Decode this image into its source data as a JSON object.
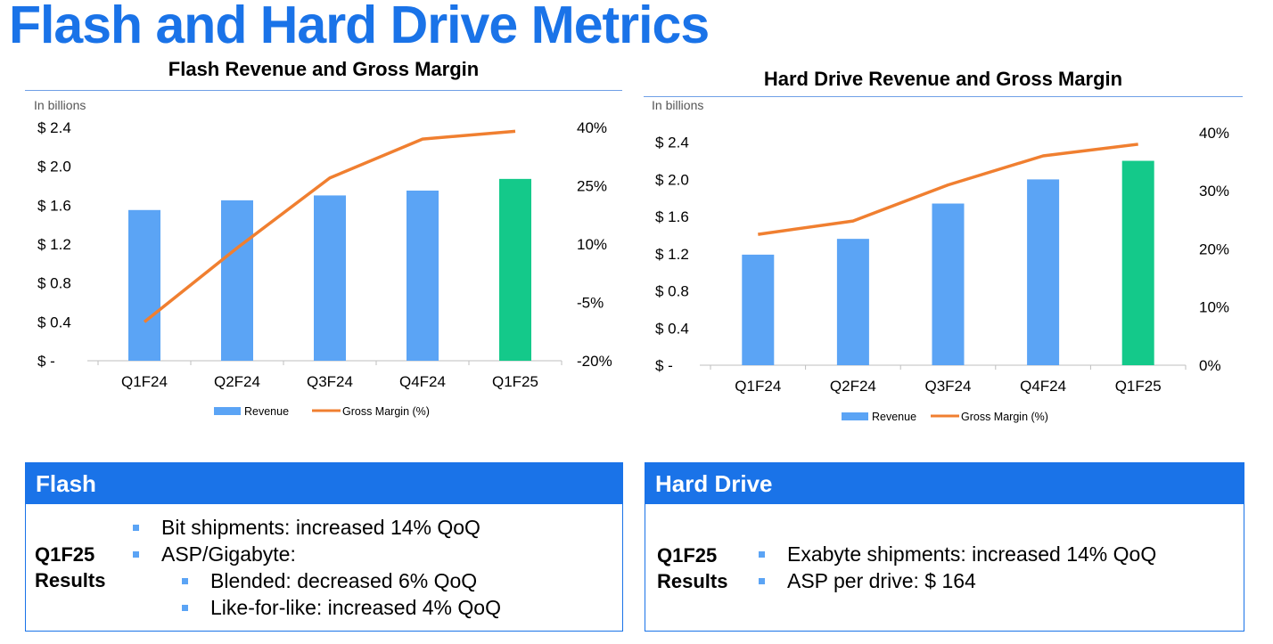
{
  "page_title": "Flash and Hard Drive Metrics",
  "colors": {
    "title_blue": "#1a73e8",
    "bar_blue": "#5ba4f5",
    "bar_green": "#14c98a",
    "line_orange": "#f07f30"
  },
  "chart_data": [
    {
      "type": "bar",
      "title": "Flash Revenue and Gross Margin",
      "unit_label": "In billions",
      "categories": [
        "Q1F24",
        "Q2F24",
        "Q3F24",
        "Q4F24",
        "Q1F25"
      ],
      "series": [
        {
          "name": "Revenue",
          "kind": "bar",
          "axis": "left",
          "values": [
            1.55,
            1.65,
            1.7,
            1.75,
            1.87
          ],
          "highlight_last": true
        },
        {
          "name": "Gross Margin (%)",
          "kind": "line",
          "axis": "right",
          "values": [
            -10,
            9,
            27,
            37,
            39
          ]
        }
      ],
      "left_axis": {
        "ticks": [
          "$ -",
          "$ 0.4",
          "$ 0.8",
          "$ 1.2",
          "$ 1.6",
          "$ 2.0",
          "$ 2.4"
        ],
        "min": 0,
        "max": 2.4
      },
      "right_axis": {
        "ticks": [
          "-20%",
          "-5%",
          "10%",
          "25%",
          "40%"
        ],
        "min": -20,
        "max": 40
      },
      "legend": {
        "position": "bottom",
        "items": [
          "Revenue",
          "Gross Margin (%)"
        ]
      }
    },
    {
      "type": "bar",
      "title": "Hard Drive Revenue and Gross Margin",
      "unit_label": "In billions",
      "categories": [
        "Q1F24",
        "Q2F24",
        "Q3F24",
        "Q4F24",
        "Q1F25"
      ],
      "series": [
        {
          "name": "Revenue",
          "kind": "bar",
          "axis": "left",
          "values": [
            1.19,
            1.36,
            1.74,
            2.0,
            2.2
          ],
          "highlight_last": true
        },
        {
          "name": "Gross Margin (%)",
          "kind": "line",
          "axis": "right",
          "values": [
            22.5,
            24.8,
            31,
            36,
            38
          ]
        }
      ],
      "left_axis": {
        "ticks": [
          "$ -",
          "$ 0.4",
          "$ 0.8",
          "$ 1.2",
          "$ 1.6",
          "$ 2.0",
          "$ 2.4"
        ],
        "min": 0,
        "max": 2.56
      },
      "right_axis": {
        "ticks": [
          "0%",
          "10%",
          "20%",
          "30%",
          "40%"
        ],
        "min": 0,
        "max": 40.9
      },
      "legend": {
        "position": "bottom",
        "items": [
          "Revenue",
          "Gross Margin (%)"
        ]
      }
    }
  ],
  "flash_box": {
    "header": "Flash",
    "results_label_line1": "Q1F25",
    "results_label_line2": "Results",
    "bullets": [
      {
        "text": "Bit shipments: increased 14% QoQ",
        "level": 0
      },
      {
        "text": "ASP/Gigabyte:",
        "level": 0
      },
      {
        "text": "Blended: decreased 6% QoQ",
        "level": 1
      },
      {
        "text": "Like-for-like: increased 4% QoQ",
        "level": 1
      }
    ]
  },
  "hdd_box": {
    "header": "Hard Drive",
    "results_label_line1": "Q1F25",
    "results_label_line2": "Results",
    "bullets": [
      {
        "text": "Exabyte shipments: increased 14% QoQ",
        "level": 0
      },
      {
        "text": "ASP per drive: $ 164",
        "level": 0
      }
    ]
  }
}
